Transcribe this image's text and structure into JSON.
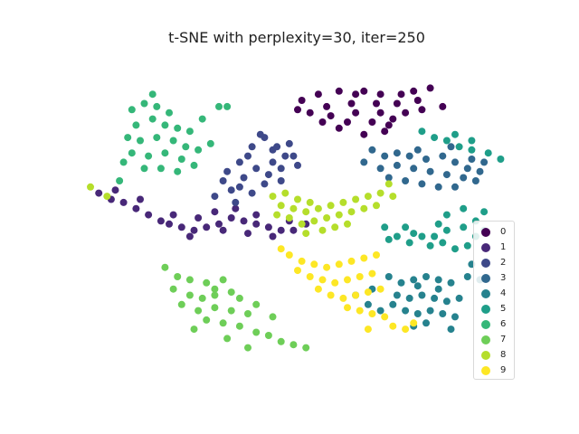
{
  "chart_data": {
    "type": "scatter",
    "title": "t-SNE with perplexity=30, iter=250",
    "xlabel": "",
    "ylabel": "",
    "axes_visible": false,
    "xlim": [
      0,
      100
    ],
    "ylim": [
      0,
      100
    ],
    "legend": {
      "position": "center-right",
      "labels": [
        "0",
        "1",
        "2",
        "3",
        "4",
        "5",
        "6",
        "7",
        "8",
        "9"
      ]
    },
    "series": [
      {
        "name": "0",
        "color": "#440154",
        "points": [
          [
            51,
            88
          ],
          [
            55,
            90
          ],
          [
            60,
            91
          ],
          [
            66,
            91
          ],
          [
            70,
            90
          ],
          [
            75,
            90
          ],
          [
            78,
            91
          ],
          [
            82,
            92
          ],
          [
            57,
            86
          ],
          [
            63,
            87
          ],
          [
            69,
            87
          ],
          [
            74,
            87
          ],
          [
            79,
            88
          ],
          [
            53,
            84
          ],
          [
            58,
            83
          ],
          [
            64,
            84
          ],
          [
            70,
            84
          ],
          [
            76,
            84
          ],
          [
            62,
            81
          ],
          [
            68,
            81
          ],
          [
            72,
            80
          ],
          [
            66,
            77
          ],
          [
            50,
            85
          ],
          [
            80,
            85
          ],
          [
            60,
            79
          ],
          [
            71,
            78
          ],
          [
            85,
            86
          ],
          [
            56,
            81
          ],
          [
            64,
            90
          ],
          [
            73,
            82
          ]
        ]
      },
      {
        "name": "1",
        "color": "#482878",
        "points": [
          [
            2,
            58
          ],
          [
            5,
            56
          ],
          [
            8,
            55
          ],
          [
            11,
            53
          ],
          [
            14,
            51
          ],
          [
            17,
            49
          ],
          [
            19,
            48
          ],
          [
            22,
            47
          ],
          [
            25,
            46
          ],
          [
            28,
            47
          ],
          [
            31,
            48
          ],
          [
            34,
            50
          ],
          [
            37,
            49
          ],
          [
            40,
            48
          ],
          [
            43,
            47
          ],
          [
            46,
            46
          ],
          [
            49,
            46
          ],
          [
            52,
            48
          ],
          [
            20,
            51
          ],
          [
            26,
            50
          ],
          [
            32,
            46
          ],
          [
            38,
            45
          ],
          [
            44,
            44
          ],
          [
            30,
            52
          ],
          [
            35,
            53
          ],
          [
            6,
            59
          ],
          [
            12,
            56
          ],
          [
            48,
            49
          ],
          [
            24,
            44
          ],
          [
            40,
            51
          ]
        ]
      },
      {
        "name": "2",
        "color": "#3e4989",
        "points": [
          [
            39,
            73
          ],
          [
            42,
            76
          ],
          [
            44,
            72
          ],
          [
            47,
            70
          ],
          [
            36,
            68
          ],
          [
            40,
            66
          ],
          [
            43,
            64
          ],
          [
            32,
            62
          ],
          [
            36,
            60
          ],
          [
            39,
            58
          ],
          [
            30,
            57
          ],
          [
            35,
            55
          ],
          [
            42,
            61
          ],
          [
            46,
            66
          ],
          [
            38,
            70
          ],
          [
            45,
            73
          ],
          [
            41,
            77
          ],
          [
            48,
            74
          ],
          [
            33,
            65
          ],
          [
            44,
            68
          ],
          [
            37,
            63
          ],
          [
            49,
            70
          ],
          [
            34,
            59
          ],
          [
            46,
            62
          ],
          [
            50,
            67
          ]
        ]
      },
      {
        "name": "3",
        "color": "#31688e",
        "points": [
          [
            68,
            72
          ],
          [
            71,
            70
          ],
          [
            74,
            71
          ],
          [
            77,
            70
          ],
          [
            81,
            69
          ],
          [
            85,
            70
          ],
          [
            88,
            68
          ],
          [
            91,
            66
          ],
          [
            94,
            65
          ],
          [
            70,
            66
          ],
          [
            74,
            67
          ],
          [
            78,
            66
          ],
          [
            82,
            65
          ],
          [
            86,
            64
          ],
          [
            90,
            63
          ],
          [
            93,
            62
          ],
          [
            76,
            62
          ],
          [
            80,
            61
          ],
          [
            84,
            60
          ],
          [
            88,
            60
          ],
          [
            72,
            63
          ],
          [
            92,
            69
          ],
          [
            66,
            68
          ],
          [
            79,
            72
          ],
          [
            87,
            73
          ],
          [
            95,
            68
          ]
        ]
      },
      {
        "name": "4",
        "color": "#26828e",
        "points": [
          [
            72,
            31
          ],
          [
            75,
            29
          ],
          [
            78,
            30
          ],
          [
            81,
            31
          ],
          [
            84,
            30
          ],
          [
            87,
            29
          ],
          [
            74,
            25
          ],
          [
            77,
            24
          ],
          [
            80,
            25
          ],
          [
            83,
            24
          ],
          [
            86,
            23
          ],
          [
            76,
            20
          ],
          [
            79,
            19
          ],
          [
            82,
            20
          ],
          [
            85,
            19
          ],
          [
            88,
            18
          ],
          [
            73,
            22
          ],
          [
            79,
            28
          ],
          [
            84,
            27
          ],
          [
            89,
            24
          ],
          [
            64,
            25
          ],
          [
            67,
            22
          ],
          [
            70,
            20
          ],
          [
            91,
            31
          ],
          [
            94,
            30
          ],
          [
            92,
            35
          ],
          [
            87,
            14
          ],
          [
            78,
            15
          ],
          [
            81,
            16
          ],
          [
            68,
            27
          ]
        ]
      },
      {
        "name": "5",
        "color": "#1f9e89",
        "points": [
          [
            76,
            47
          ],
          [
            78,
            45
          ],
          [
            80,
            44
          ],
          [
            83,
            44
          ],
          [
            86,
            46
          ],
          [
            74,
            44
          ],
          [
            77,
            42
          ],
          [
            82,
            41
          ],
          [
            85,
            42
          ],
          [
            88,
            40
          ],
          [
            91,
            41
          ],
          [
            93,
            44
          ],
          [
            90,
            47
          ],
          [
            93,
            49
          ],
          [
            86,
            51
          ],
          [
            90,
            53
          ],
          [
            95,
            52
          ],
          [
            83,
            76
          ],
          [
            86,
            75
          ],
          [
            89,
            73
          ],
          [
            92,
            72
          ],
          [
            96,
            71
          ],
          [
            99,
            69
          ],
          [
            80,
            78
          ],
          [
            72,
            43
          ],
          [
            71,
            47
          ],
          [
            84,
            48
          ],
          [
            95,
            46
          ],
          [
            92,
            75
          ],
          [
            88,
            77
          ]
        ]
      },
      {
        "name": "6",
        "color": "#35b779",
        "points": [
          [
            10,
            85
          ],
          [
            13,
            87
          ],
          [
            16,
            86
          ],
          [
            19,
            84
          ],
          [
            11,
            80
          ],
          [
            15,
            82
          ],
          [
            18,
            80
          ],
          [
            21,
            79
          ],
          [
            9,
            76
          ],
          [
            12,
            75
          ],
          [
            16,
            76
          ],
          [
            20,
            75
          ],
          [
            23,
            73
          ],
          [
            10,
            71
          ],
          [
            14,
            70
          ],
          [
            18,
            71
          ],
          [
            22,
            69
          ],
          [
            26,
            72
          ],
          [
            13,
            66
          ],
          [
            17,
            66
          ],
          [
            21,
            65
          ],
          [
            25,
            67
          ],
          [
            8,
            68
          ],
          [
            24,
            78
          ],
          [
            29,
            74
          ],
          [
            31,
            86
          ],
          [
            33,
            86
          ],
          [
            7,
            62
          ],
          [
            27,
            82
          ],
          [
            15,
            90
          ]
        ]
      },
      {
        "name": "7",
        "color": "#6ece58",
        "points": [
          [
            18,
            34
          ],
          [
            21,
            31
          ],
          [
            24,
            30
          ],
          [
            28,
            29
          ],
          [
            32,
            30
          ],
          [
            20,
            27
          ],
          [
            24,
            25
          ],
          [
            27,
            24
          ],
          [
            30,
            25
          ],
          [
            34,
            26
          ],
          [
            22,
            22
          ],
          [
            26,
            20
          ],
          [
            30,
            21
          ],
          [
            34,
            20
          ],
          [
            38,
            19
          ],
          [
            28,
            17
          ],
          [
            32,
            16
          ],
          [
            36,
            15
          ],
          [
            40,
            13
          ],
          [
            43,
            12
          ],
          [
            46,
            10
          ],
          [
            49,
            9
          ],
          [
            52,
            8
          ],
          [
            36,
            24
          ],
          [
            40,
            22
          ],
          [
            44,
            18
          ],
          [
            25,
            14
          ],
          [
            33,
            11
          ],
          [
            38,
            8
          ],
          [
            30,
            27
          ]
        ]
      },
      {
        "name": "8",
        "color": "#b5de2b",
        "points": [
          [
            44,
            57
          ],
          [
            47,
            58
          ],
          [
            50,
            56
          ],
          [
            53,
            55
          ],
          [
            46,
            54
          ],
          [
            49,
            53
          ],
          [
            52,
            52
          ],
          [
            55,
            53
          ],
          [
            58,
            54
          ],
          [
            61,
            55
          ],
          [
            64,
            56
          ],
          [
            67,
            57
          ],
          [
            70,
            58
          ],
          [
            73,
            57
          ],
          [
            48,
            50
          ],
          [
            51,
            48
          ],
          [
            54,
            49
          ],
          [
            57,
            50
          ],
          [
            60,
            51
          ],
          [
            63,
            52
          ],
          [
            66,
            53
          ],
          [
            69,
            54
          ],
          [
            52,
            45
          ],
          [
            56,
            46
          ],
          [
            59,
            47
          ],
          [
            45,
            51
          ],
          [
            62,
            48
          ],
          [
            72,
            61
          ],
          [
            0,
            60
          ],
          [
            4,
            57
          ]
        ]
      },
      {
        "name": "9",
        "color": "#fde725",
        "points": [
          [
            48,
            38
          ],
          [
            51,
            36
          ],
          [
            54,
            35
          ],
          [
            57,
            34
          ],
          [
            60,
            35
          ],
          [
            63,
            36
          ],
          [
            66,
            37
          ],
          [
            69,
            38
          ],
          [
            50,
            33
          ],
          [
            53,
            31
          ],
          [
            56,
            30
          ],
          [
            59,
            29
          ],
          [
            62,
            30
          ],
          [
            65,
            31
          ],
          [
            68,
            32
          ],
          [
            55,
            27
          ],
          [
            58,
            25
          ],
          [
            61,
            24
          ],
          [
            64,
            25
          ],
          [
            67,
            26
          ],
          [
            70,
            27
          ],
          [
            62,
            21
          ],
          [
            65,
            20
          ],
          [
            68,
            19
          ],
          [
            71,
            18
          ],
          [
            73,
            15
          ],
          [
            76,
            14
          ],
          [
            78,
            16
          ],
          [
            67,
            14
          ],
          [
            46,
            40
          ]
        ]
      }
    ]
  }
}
